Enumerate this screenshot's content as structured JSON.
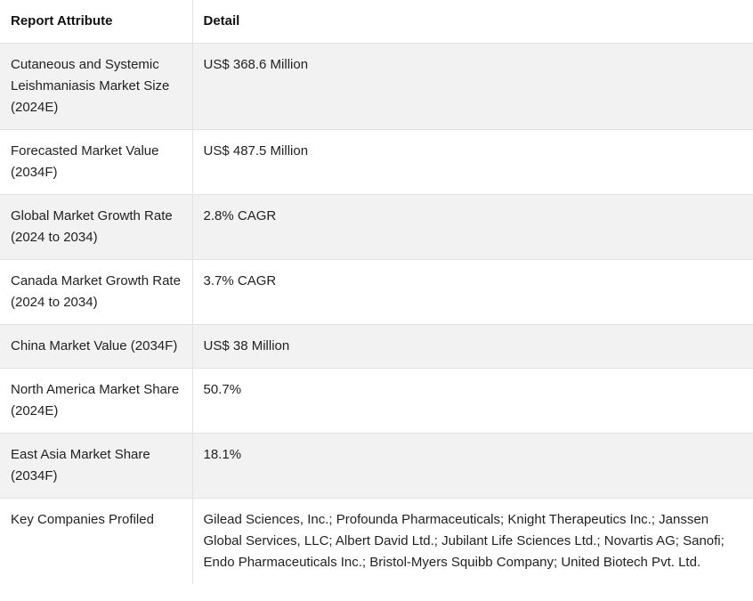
{
  "table": {
    "headers": [
      "Report Attribute",
      "Detail"
    ],
    "rows": [
      [
        "Cutaneous and Systemic Leishmaniasis Market Size (2024E)",
        "US$ 368.6 Million"
      ],
      [
        "Forecasted Market Value (2034F)",
        "US$ 487.5 Million"
      ],
      [
        "Global Market Growth Rate (2024 to 2034)",
        "2.8% CAGR"
      ],
      [
        "Canada Market Growth Rate (2024 to 2034)",
        "3.7% CAGR"
      ],
      [
        "China Market Value (2034F)",
        "US$ 38 Million"
      ],
      [
        "North America Market Share (2024E)",
        "50.7%"
      ],
      [
        "East Asia Market Share (2034F)",
        "18.1%"
      ],
      [
        "Key Companies Profiled",
        "Gilead Sciences, Inc.; Profounda Pharmaceuticals; Knight Therapeutics Inc.; Janssen Global Services, LLC; Albert David Ltd.; Jubilant Life Sciences Ltd.; Novartis AG; Sanofi; Endo Pharmaceuticals Inc.; Bristol-Myers Squibb Company; United Biotech Pvt. Ltd."
      ]
    ]
  },
  "colors": {
    "stripe": "#f2f2f2",
    "border": "#e2e2e2",
    "text": "#222222"
  }
}
